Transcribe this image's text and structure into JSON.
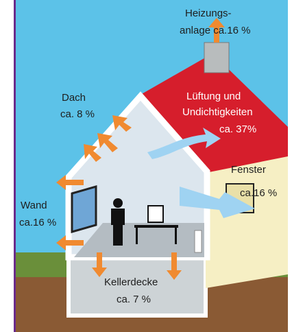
{
  "labels": {
    "heating": {
      "lines": [
        "Heizungs-",
        "anlage ca.16 %"
      ]
    },
    "roof": {
      "lines": [
        "Dach",
        "ca. 8 %"
      ]
    },
    "ventilation": {
      "lines": [
        "Lüftung und",
        "Undichtigkeiten",
        "ca. 37%"
      ]
    },
    "window": {
      "lines": [
        "Fenster",
        "ca.16 %"
      ]
    },
    "wall": {
      "lines": [
        "Wand",
        "ca.16 %"
      ]
    },
    "basement": {
      "lines": [
        "Kellerdecke",
        "ca. 7 %"
      ]
    }
  }
}
